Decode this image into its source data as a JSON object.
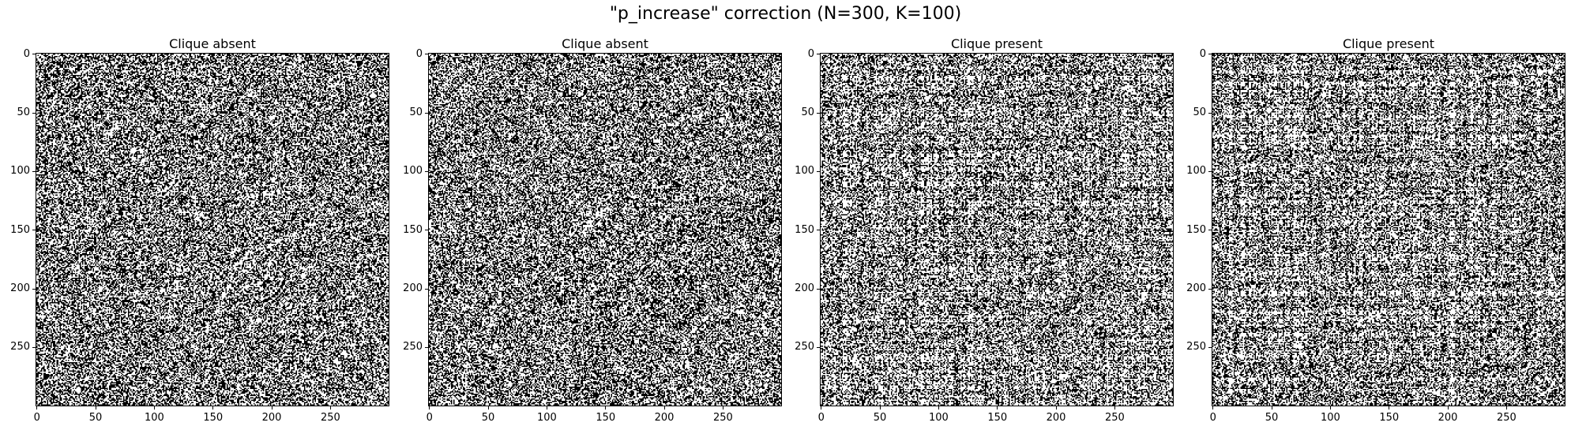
{
  "suptitle": "\"p_increase\" correction (N=300, K=100)",
  "chart_data": [
    {
      "type": "heatmap",
      "title": "Clique absent",
      "xlim": [
        0,
        300
      ],
      "ylim": [
        300,
        0
      ],
      "xticks": [
        0,
        50,
        100,
        150,
        200,
        250
      ],
      "yticks": [
        0,
        50,
        100,
        150,
        200,
        250
      ],
      "colormap": {
        "0": "#000000",
        "1": "#ffffff"
      },
      "grid": false,
      "n": 300,
      "density": 0.5,
      "clique": false,
      "seed": 11
    },
    {
      "type": "heatmap",
      "title": "Clique absent",
      "xlim": [
        0,
        300
      ],
      "ylim": [
        300,
        0
      ],
      "xticks": [
        0,
        50,
        100,
        150,
        200,
        250
      ],
      "yticks": [
        0,
        50,
        100,
        150,
        200,
        250
      ],
      "colormap": {
        "0": "#000000",
        "1": "#ffffff"
      },
      "grid": false,
      "n": 300,
      "density": 0.5,
      "clique": false,
      "seed": 23
    },
    {
      "type": "heatmap",
      "title": "Clique present",
      "xlim": [
        0,
        300
      ],
      "ylim": [
        300,
        0
      ],
      "xticks": [
        0,
        50,
        100,
        150,
        200,
        250
      ],
      "yticks": [
        0,
        50,
        100,
        150,
        200,
        250
      ],
      "colormap": {
        "0": "#000000",
        "1": "#ffffff"
      },
      "grid": false,
      "n": 300,
      "density": 0.5,
      "clique": true,
      "clique_size": 100,
      "seed": 37
    },
    {
      "type": "heatmap",
      "title": "Clique present",
      "xlim": [
        0,
        300
      ],
      "ylim": [
        300,
        0
      ],
      "xticks": [
        0,
        50,
        100,
        150,
        200,
        250
      ],
      "yticks": [
        0,
        50,
        100,
        150,
        200,
        250
      ],
      "colormap": {
        "0": "#000000",
        "1": "#ffffff"
      },
      "grid": false,
      "n": 300,
      "density": 0.5,
      "clique": true,
      "clique_size": 100,
      "seed": 53
    }
  ]
}
